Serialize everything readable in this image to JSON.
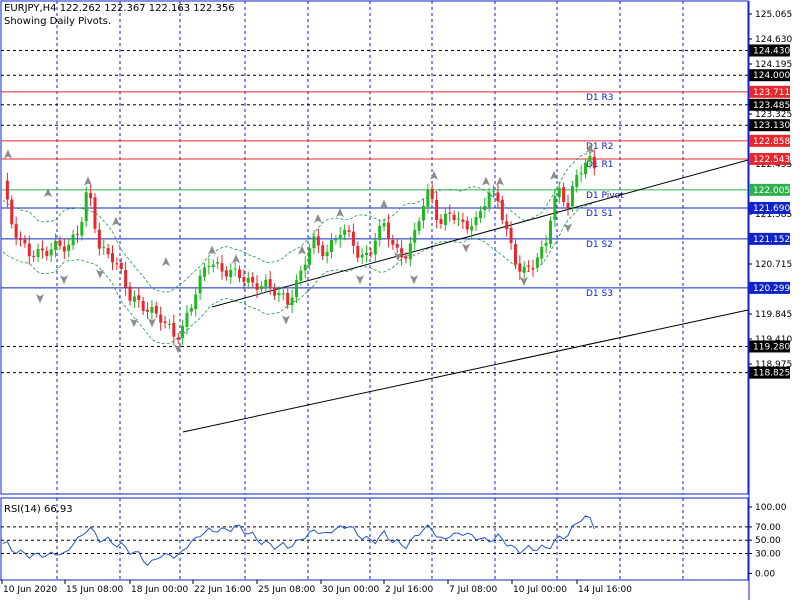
{
  "header": {
    "symbol_line": "EURJPY,H4  122.262 122.367 122.163 122.356",
    "subtitle": "Showing Daily Pivots."
  },
  "rsi_panel": {
    "label": "RSI(14) 66.93",
    "value": 66.93,
    "axis_labels": [
      "100.00",
      "70.00",
      "50.00",
      "30.00",
      "0.00"
    ]
  },
  "time_axis": {
    "labels": [
      "10 Jun 2020",
      "15 Jun 08:00",
      "18 Jun 00:00",
      "22 Jun 16:00",
      "25 Jun 08:00",
      "30 Jun 00:00",
      "2 Jul 16:00",
      "7 Jul 08:00",
      "10 Jul 00:00",
      "14 Jul 16:00"
    ]
  },
  "price_axis": {
    "labels": [
      "125.065",
      "124.630",
      "124.195",
      "123.325",
      "122.455",
      "121.585",
      "120.715",
      "119.845",
      "119.410",
      "118.975"
    ]
  },
  "price_tags": [
    {
      "text": "124.430",
      "bg": "#000000",
      "fg": "#ffffff"
    },
    {
      "text": "124.000",
      "bg": "#000000",
      "fg": "#ffffff"
    },
    {
      "text": "123.711",
      "bg": "#e8262d",
      "fg": "#ffffff"
    },
    {
      "text": "123.485",
      "bg": "#000000",
      "fg": "#ffffff"
    },
    {
      "text": "123.130",
      "bg": "#000000",
      "fg": "#ffffff"
    },
    {
      "text": "122.858",
      "bg": "#e8262d",
      "fg": "#ffffff"
    },
    {
      "text": "122.543",
      "bg": "#e8262d",
      "fg": "#ffffff"
    },
    {
      "text": "122.005",
      "bg": "#2db14a",
      "fg": "#ffffff"
    },
    {
      "text": "121.690",
      "bg": "#0f23c8",
      "fg": "#ffffff"
    },
    {
      "text": "121.152",
      "bg": "#0f23c8",
      "fg": "#ffffff"
    },
    {
      "text": "120.299",
      "bg": "#0f23c8",
      "fg": "#ffffff"
    },
    {
      "text": "119.280",
      "bg": "#000000",
      "fg": "#ffffff"
    },
    {
      "text": "118.825",
      "bg": "#000000",
      "fg": "#ffffff"
    }
  ],
  "pivots": [
    {
      "label": "D1  R3",
      "price": 123.711,
      "color": "#e8262d"
    },
    {
      "label": "D1  R2",
      "price": 122.858,
      "color": "#e8262d"
    },
    {
      "label": "D1  R1",
      "price": 122.543,
      "color": "#e8262d"
    },
    {
      "label": "D1  Pivot",
      "price": 122.005,
      "color": "#2db14a"
    },
    {
      "label": "D1  S1",
      "price": 121.69,
      "color": "#0f23c8"
    },
    {
      "label": "D1  S2",
      "price": 121.152,
      "color": "#0f23c8"
    },
    {
      "label": "D1  S3",
      "price": 120.299,
      "color": "#0f23c8"
    }
  ],
  "dashed_levels": [
    124.43,
    124.0,
    123.485,
    123.13,
    119.28,
    118.825
  ],
  "colors": {
    "bull_candle": "#1fb81f",
    "bear_candle": "#e8262d",
    "frame": "#0f23c8",
    "envelope": "#1c9a3c",
    "rsi_line": "#2255cc",
    "trend_channel": "#000000",
    "fractal": "#8c8c8c"
  },
  "icons": {
    "fractal_marker": "triangle-arrow-icon"
  }
}
